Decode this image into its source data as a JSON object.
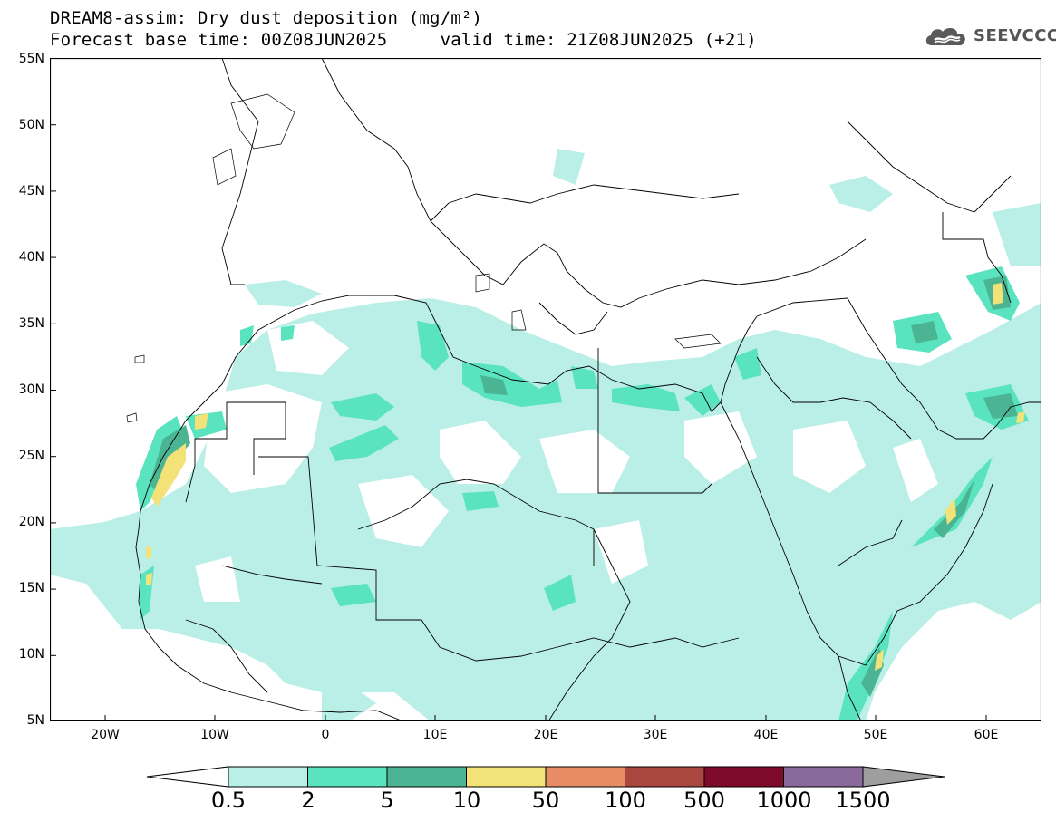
{
  "header": {
    "title_line1": "DREAM8-assim: Dry dust deposition (mg/m²)",
    "title_line2": "Forecast base time: 00Z08JUN2025     valid time: 21Z08JUN2025 (+21)",
    "logo_text": "SEEVCCC",
    "logo_icon": "cloud-icon"
  },
  "map": {
    "lat_labels": [
      "55N",
      "50N",
      "45N",
      "40N",
      "35N",
      "30N",
      "25N",
      "20N",
      "15N",
      "10N",
      "5N"
    ],
    "lon_labels": [
      "20W",
      "10W",
      "0",
      "10E",
      "20E",
      "30E",
      "40E",
      "50E",
      "60E"
    ]
  },
  "legend": {
    "labels": [
      "0.5",
      "2",
      "5",
      "10",
      "50",
      "100",
      "500",
      "1000",
      "1500"
    ],
    "colors": [
      "#b9efe7",
      "#5ae3bf",
      "#4bb593",
      "#f2e277",
      "#e88c66",
      "#a9473f",
      "#7d0a2b",
      "#8a6a9c",
      "#9e9e9e"
    ]
  }
}
